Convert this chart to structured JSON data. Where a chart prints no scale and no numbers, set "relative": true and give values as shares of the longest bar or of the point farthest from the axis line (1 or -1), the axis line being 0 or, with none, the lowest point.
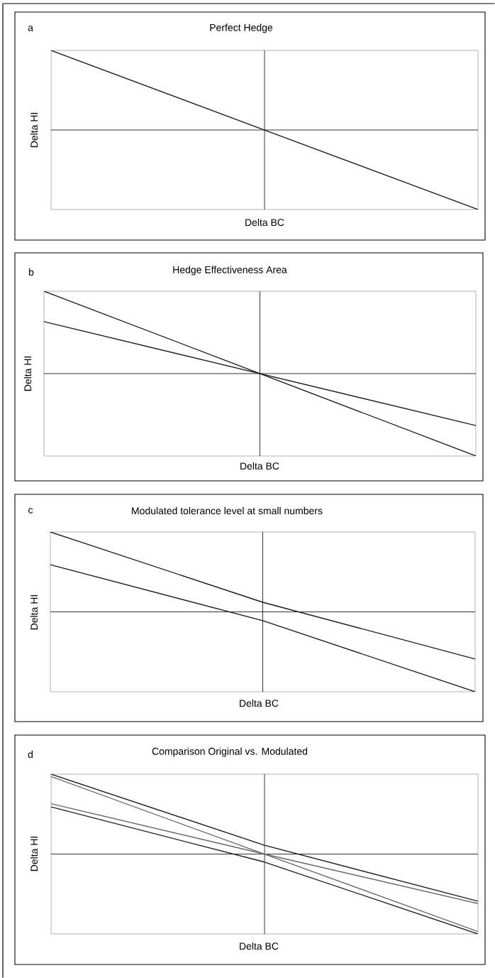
{
  "chart_data": [
    {
      "type": "line",
      "relative": true,
      "title": "Perfect Hedge",
      "xlabel": "Delta BC",
      "ylabel": "Delta HI",
      "annotations": [
        "a"
      ],
      "categories": [
        null,
        null,
        null
      ],
      "series": [
        {
          "color": "#1a1a1a",
          "values": [
            1,
            0,
            -1
          ]
        }
      ]
    },
    {
      "type": "line",
      "relative": true,
      "title": "Hedge Effectiveness Area",
      "xlabel": "Delta BC",
      "ylabel": "Delta HI",
      "annotations": [
        "b"
      ],
      "categories": [
        null,
        null,
        null
      ],
      "series": [
        {
          "color": "#1a1a1a",
          "values": [
            1,
            0,
            -1
          ]
        },
        {
          "color": "#1a1a1a",
          "values": [
            0.63,
            0,
            -0.63
          ]
        }
      ]
    },
    {
      "type": "line",
      "relative": true,
      "title": "Modulated tolerance level at small numbers",
      "xlabel": "Delta BC",
      "ylabel": "Delta HI",
      "annotations": [
        "c"
      ],
      "categories": [
        null,
        null,
        null
      ],
      "series": [
        {
          "color": "#1a1a1a",
          "values": [
            1,
            0.12,
            -0.59
          ]
        },
        {
          "color": "#1a1a1a",
          "values": [
            0.59,
            -0.11,
            -1
          ]
        }
      ]
    },
    {
      "type": "line",
      "relative": true,
      "title": "Comparison Original vs. Modulated",
      "xlabel": "Delta BC",
      "ylabel": "Delta HI",
      "annotations": [
        "d"
      ],
      "categories": [
        null,
        null,
        null
      ],
      "series": [
        {
          "color": "#1a1a1a",
          "values": [
            1,
            0.11,
            -0.59
          ]
        },
        {
          "color": "#666666",
          "values": [
            0.97,
            0,
            -0.97
          ]
        },
        {
          "color": "#666666",
          "values": [
            0.63,
            0,
            -0.62
          ]
        },
        {
          "color": "#1a1a1a",
          "values": [
            0.59,
            -0.1,
            -1
          ]
        }
      ]
    }
  ]
}
